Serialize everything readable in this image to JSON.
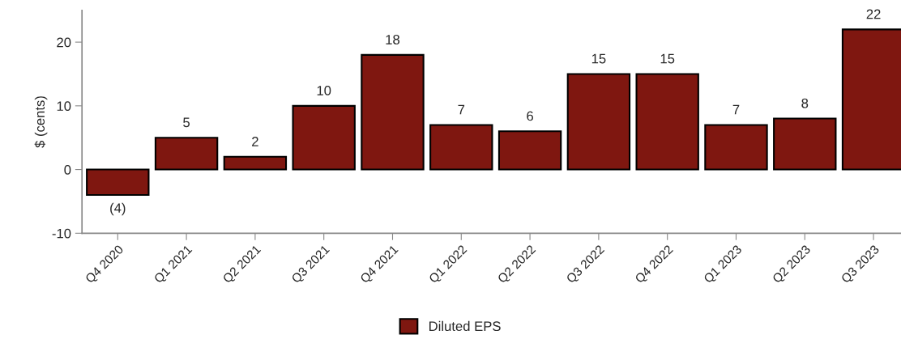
{
  "chart_data": {
    "type": "bar",
    "ylabel": "$ (cents)",
    "categories": [
      "Q4 2020",
      "Q1 2021",
      "Q2 2021",
      "Q3 2021",
      "Q4 2021",
      "Q1 2022",
      "Q2 2022",
      "Q3 2022",
      "Q4 2022",
      "Q1 2023",
      "Q2 2023",
      "Q3 2023"
    ],
    "series": [
      {
        "name": "Diluted EPS",
        "color": "#7f1710",
        "values": [
          -4,
          5,
          2,
          10,
          18,
          7,
          6,
          15,
          15,
          7,
          8,
          22
        ],
        "value_labels": [
          "(4)",
          "5",
          "2",
          "10",
          "18",
          "7",
          "6",
          "15",
          "15",
          "7",
          "8",
          "22"
        ]
      }
    ],
    "ylim": [
      -10,
      25
    ],
    "yticks": [
      -10,
      0,
      10,
      20
    ],
    "grid": false,
    "legend": "bottom"
  }
}
